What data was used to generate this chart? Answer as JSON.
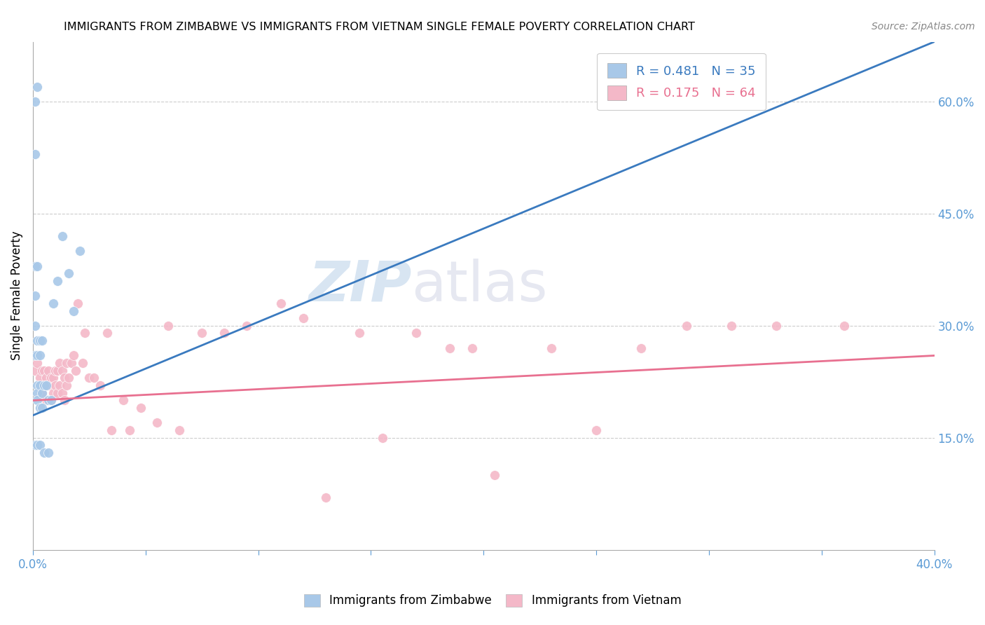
{
  "title": "IMMIGRANTS FROM ZIMBABWE VS IMMIGRANTS FROM VIETNAM SINGLE FEMALE POVERTY CORRELATION CHART",
  "source": "Source: ZipAtlas.com",
  "ylabel": "Single Female Poverty",
  "ylabel_right_ticks": [
    "60.0%",
    "45.0%",
    "30.0%",
    "15.0%"
  ],
  "ylabel_right_vals": [
    0.6,
    0.45,
    0.3,
    0.15
  ],
  "zim_color": "#a8c8e8",
  "viet_color": "#f4b8c8",
  "zim_line_color": "#3a7abf",
  "viet_line_color": "#e87090",
  "watermark_zip": "ZIP",
  "watermark_atlas": "atlas",
  "xmin": 0.0,
  "xmax": 0.4,
  "ymin": 0.0,
  "ymax": 0.68,
  "zim_R": 0.481,
  "zim_N": 35,
  "viet_R": 0.175,
  "viet_N": 64,
  "zim_line_x0": 0.0,
  "zim_line_y0": 0.18,
  "zim_line_x1": 0.4,
  "zim_line_y1": 0.68,
  "viet_line_x0": 0.0,
  "viet_line_y0": 0.2,
  "viet_line_x1": 0.4,
  "viet_line_y1": 0.26,
  "zim_points_x": [
    0.001,
    0.001,
    0.001,
    0.001,
    0.001,
    0.001,
    0.001,
    0.002,
    0.002,
    0.002,
    0.002,
    0.002,
    0.002,
    0.002,
    0.002,
    0.003,
    0.003,
    0.003,
    0.003,
    0.003,
    0.004,
    0.004,
    0.004,
    0.005,
    0.005,
    0.006,
    0.007,
    0.007,
    0.008,
    0.009,
    0.011,
    0.013,
    0.016,
    0.018,
    0.021
  ],
  "zim_points_y": [
    0.6,
    0.53,
    0.38,
    0.34,
    0.3,
    0.26,
    0.14,
    0.62,
    0.38,
    0.28,
    0.26,
    0.22,
    0.21,
    0.2,
    0.14,
    0.28,
    0.26,
    0.22,
    0.19,
    0.14,
    0.28,
    0.21,
    0.19,
    0.22,
    0.13,
    0.22,
    0.2,
    0.13,
    0.2,
    0.33,
    0.36,
    0.42,
    0.37,
    0.32,
    0.4
  ],
  "viet_points_x": [
    0.001,
    0.002,
    0.003,
    0.004,
    0.004,
    0.005,
    0.005,
    0.006,
    0.006,
    0.007,
    0.007,
    0.008,
    0.008,
    0.009,
    0.009,
    0.01,
    0.01,
    0.011,
    0.011,
    0.012,
    0.012,
    0.013,
    0.013,
    0.014,
    0.014,
    0.015,
    0.015,
    0.016,
    0.017,
    0.018,
    0.019,
    0.02,
    0.022,
    0.023,
    0.025,
    0.027,
    0.03,
    0.033,
    0.035,
    0.04,
    0.043,
    0.048,
    0.055,
    0.06,
    0.065,
    0.075,
    0.085,
    0.095,
    0.11,
    0.12,
    0.13,
    0.145,
    0.155,
    0.17,
    0.185,
    0.195,
    0.205,
    0.23,
    0.25,
    0.27,
    0.29,
    0.31,
    0.33,
    0.36
  ],
  "viet_points_y": [
    0.24,
    0.25,
    0.23,
    0.24,
    0.21,
    0.24,
    0.22,
    0.23,
    0.2,
    0.24,
    0.22,
    0.23,
    0.2,
    0.23,
    0.21,
    0.24,
    0.22,
    0.24,
    0.21,
    0.25,
    0.22,
    0.24,
    0.21,
    0.23,
    0.2,
    0.25,
    0.22,
    0.23,
    0.25,
    0.26,
    0.24,
    0.33,
    0.25,
    0.29,
    0.23,
    0.23,
    0.22,
    0.29,
    0.16,
    0.2,
    0.16,
    0.19,
    0.17,
    0.3,
    0.16,
    0.29,
    0.29,
    0.3,
    0.33,
    0.31,
    0.07,
    0.29,
    0.15,
    0.29,
    0.27,
    0.27,
    0.1,
    0.27,
    0.16,
    0.27,
    0.3,
    0.3,
    0.3,
    0.3
  ]
}
